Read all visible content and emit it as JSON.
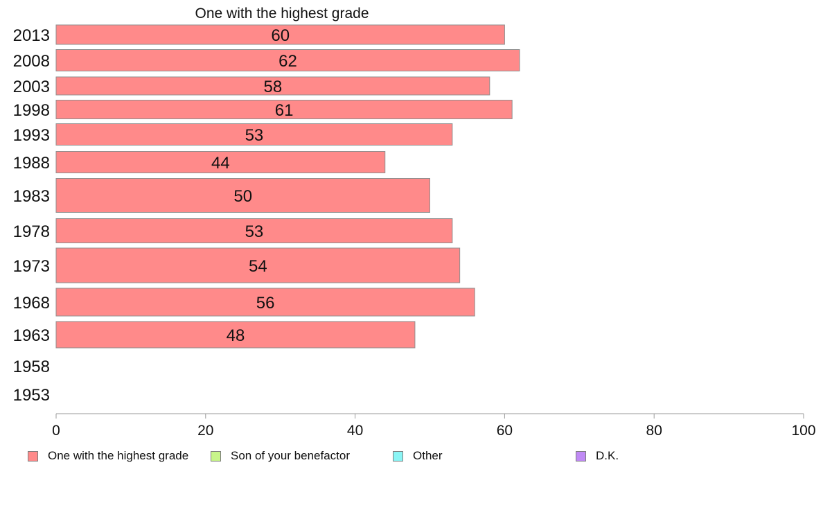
{
  "chart_data": {
    "type": "bar",
    "orientation": "horizontal",
    "title": "One with the highest grade",
    "categories": [
      "2013",
      "2008",
      "2003",
      "1998",
      "1993",
      "1988",
      "1983",
      "1978",
      "1973",
      "1968",
      "1963",
      "1958",
      "1953"
    ],
    "series": [
      {
        "name": "One with the highest grade",
        "color": "#ff8a8a",
        "values": [
          60,
          62,
          58,
          61,
          53,
          44,
          50,
          53,
          54,
          56,
          48,
          null,
          null
        ],
        "data_labels": [
          "60",
          "62",
          "58",
          "61",
          "53",
          "44",
          "50",
          "53",
          "54",
          "56",
          "48",
          "",
          ""
        ]
      }
    ],
    "xlim": [
      0,
      100
    ],
    "x_ticks": [
      "0",
      "20",
      "40",
      "60",
      "80",
      "100"
    ],
    "xlabel": "",
    "ylabel": "",
    "grid": false,
    "legend_position": "bottom",
    "legend": [
      {
        "label": "One with the highest grade",
        "color": "#ff8a8a"
      },
      {
        "label": "Son of your benefactor",
        "color": "#c8f58a"
      },
      {
        "label": "Other",
        "color": "#8af5f5"
      },
      {
        "label": "D.K.",
        "color": "#c08af5"
      }
    ]
  }
}
